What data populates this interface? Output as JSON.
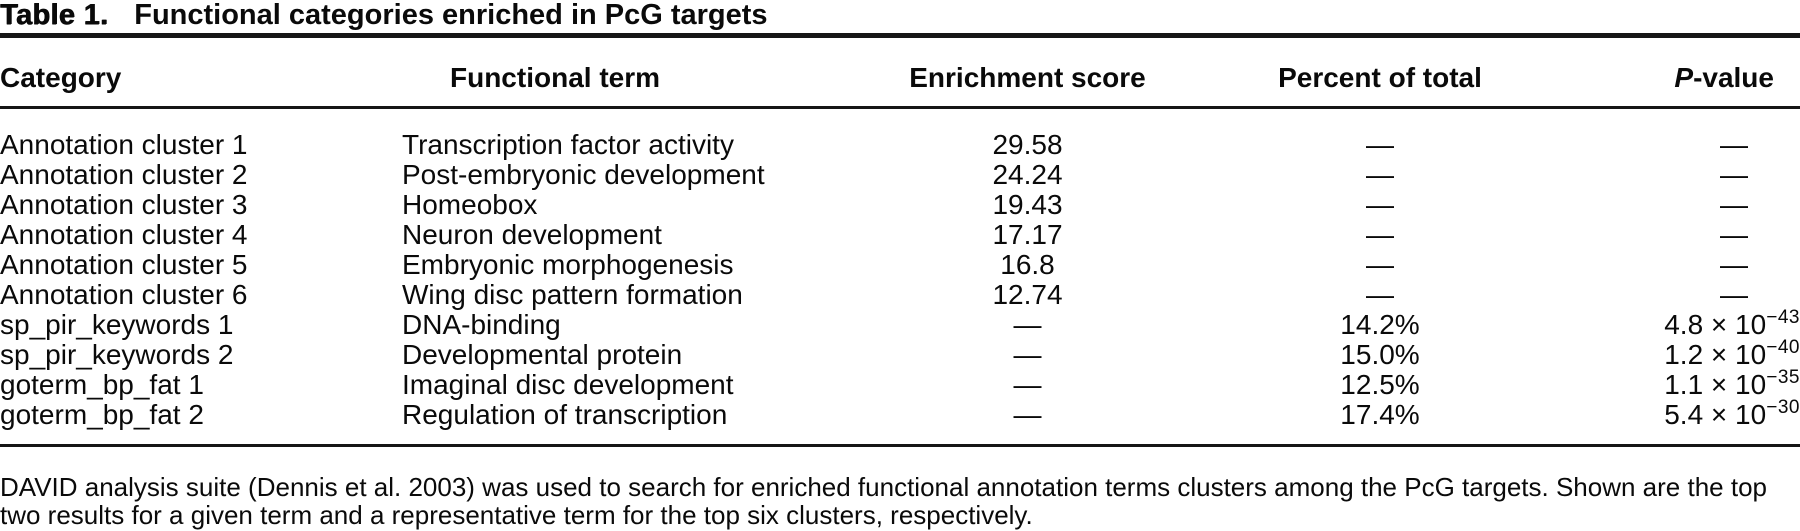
{
  "title": {
    "label": "Table 1.",
    "text": "Functional categories enriched in PcG targets"
  },
  "table": {
    "headers": [
      {
        "text": "Category"
      },
      {
        "text": "Functional term"
      },
      {
        "text": "Enrichment score"
      },
      {
        "text": "Percent of total"
      },
      {
        "italic": "P",
        "rest": "-value"
      }
    ],
    "rows": [
      {
        "category": "Annotation cluster 1",
        "term": "Transcription factor activity",
        "enrichment": "29.58",
        "percent": "—",
        "pvalue": {
          "text": "—",
          "sup": ""
        }
      },
      {
        "category": "Annotation cluster 2",
        "term": "Post-embryonic development",
        "enrichment": "24.24",
        "percent": "—",
        "pvalue": {
          "text": "—",
          "sup": ""
        }
      },
      {
        "category": "Annotation cluster 3",
        "term": "Homeobox",
        "enrichment": "19.43",
        "percent": "—",
        "pvalue": {
          "text": "—",
          "sup": ""
        }
      },
      {
        "category": "Annotation cluster 4",
        "term": "Neuron development",
        "enrichment": "17.17",
        "percent": "—",
        "pvalue": {
          "text": "—",
          "sup": ""
        }
      },
      {
        "category": "Annotation cluster 5",
        "term": "Embryonic morphogenesis",
        "enrichment": "16.8",
        "percent": "—",
        "pvalue": {
          "text": "—",
          "sup": ""
        }
      },
      {
        "category": "Annotation cluster 6",
        "term": "Wing disc pattern formation",
        "enrichment": "12.74",
        "percent": "—",
        "pvalue": {
          "text": "—",
          "sup": ""
        }
      },
      {
        "category": "sp_pir_keywords 1",
        "term": "DNA-binding",
        "enrichment": "—",
        "percent": "14.2%",
        "pvalue": {
          "text": "4.8 × 10",
          "sup": "−43"
        }
      },
      {
        "category": "sp_pir_keywords 2",
        "term": "Developmental protein",
        "enrichment": "—",
        "percent": "15.0%",
        "pvalue": {
          "text": "1.2 × 10",
          "sup": "−40"
        }
      },
      {
        "category": "goterm_bp_fat 1",
        "term": "Imaginal disc development",
        "enrichment": "—",
        "percent": "12.5%",
        "pvalue": {
          "text": "1.1 × 10",
          "sup": "−35"
        }
      },
      {
        "category": "goterm_bp_fat 2",
        "term": "Regulation of transcription",
        "enrichment": "—",
        "percent": "17.4%",
        "pvalue": {
          "text": "5.4 × 10",
          "sup": "−30"
        }
      }
    ]
  },
  "footnote": "DAVID analysis suite (Dennis et al. 2003) was used to search for enriched functional annotation terms clusters among the PcG targets. Shown are the top two results for a given term and a representative term for the top six clusters, respectively.",
  "colors": {
    "background": "#ffffff",
    "text": "#0a0a0a",
    "rule": "#161616"
  }
}
